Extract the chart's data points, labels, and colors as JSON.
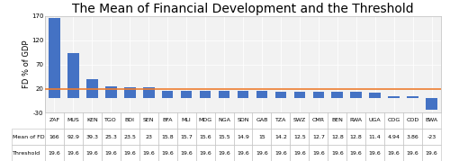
{
  "title": "The Mean of Financial Development and the Threshold",
  "ylabel": "FD % of GDP",
  "categories": [
    "ZAF",
    "MU\nS",
    "KEN",
    "TGO",
    "BDI",
    "SEN",
    "BFA",
    "MLI",
    "MD\nG",
    "NGA",
    "SDN",
    "GAB",
    "TZA",
    "SWZ",
    "CM\nR",
    "BEN",
    "RW\nA",
    "UGA",
    "COG",
    "COD",
    "BW\nA"
  ],
  "cat_labels": [
    "ZAF",
    "MUS",
    "KEN",
    "TGO",
    "BDI",
    "SEN",
    "BFA",
    "MLI",
    "MDG",
    "NGA",
    "SDN",
    "GAB",
    "TZA",
    "SWZ",
    "CMR",
    "BEN",
    "RWA",
    "UGA",
    "COG",
    "COD",
    "BWA"
  ],
  "mean_fd": [
    166,
    92.9,
    39.3,
    25.3,
    23.5,
    23,
    15.8,
    15.7,
    15.6,
    15.5,
    14.9,
    15,
    14.2,
    12.5,
    12.7,
    12.8,
    12.8,
    11.4,
    4.94,
    3.86,
    -23
  ],
  "mean_fd_str": [
    "166",
    "92.9",
    "39.3",
    "25.3",
    "23.5",
    "23",
    "15.8",
    "15.7",
    "15.6",
    "15.5",
    "14.9",
    "15",
    "14.2",
    "12.5",
    "12.7",
    "12.8",
    "12.8",
    "11.4",
    "4.94",
    "3.86",
    "-23"
  ],
  "threshold_str": [
    "19.6",
    "19.6",
    "19.6",
    "19.6",
    "19.6",
    "19.6",
    "19.6",
    "19.6",
    "19.6",
    "19.6",
    "19.6",
    "19.6",
    "19.6",
    "19.6",
    "19.6",
    "19.6",
    "19.6",
    "19.6",
    "19.6",
    "19.6",
    "19.6"
  ],
  "threshold": 19.6,
  "bar_color": "#4472C4",
  "threshold_color": "#ED7D31",
  "ylim": [
    -30,
    170
  ],
  "yticks": [
    -30,
    20,
    70,
    120,
    170
  ],
  "legend_mean_label": "Mean of FD",
  "legend_threshold_label": "Threshold",
  "plot_bg_color": "#F2F2F2",
  "grid_color": "#FFFFFF",
  "title_fontsize": 10,
  "axis_fontsize": 6,
  "tick_fontsize": 5,
  "table_fontsize": 4.5
}
